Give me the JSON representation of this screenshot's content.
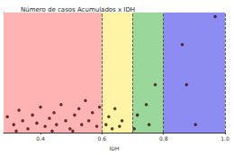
{
  "chart_data": {
    "type": "scatter",
    "title": "Número de casos Acumulados x IDH",
    "x_label": "IDH",
    "xlim": [
      0.28,
      1.0
    ],
    "xticks": [
      0.4,
      0.6,
      0.8,
      {
        "value": 1.0,
        "label": "1.0"
      }
    ],
    "ylim": [
      0,
      100
    ],
    "tick_labels": "x",
    "grid": false,
    "color": "#3a0d0d",
    "marker": "circle",
    "regions": [
      {
        "from": 0.28,
        "to": 0.6,
        "color": "#ffb3b3"
      },
      {
        "from": 0.6,
        "to": 0.7,
        "color": "#fff3a6"
      },
      {
        "from": 0.7,
        "to": 0.8,
        "color": "#9ad79a"
      },
      {
        "from": 0.8,
        "to": 1.0,
        "color": "#8c8cf2"
      }
    ],
    "x": [
      0.292,
      0.313,
      0.33,
      0.342,
      0.359,
      0.374,
      0.388,
      0.4,
      0.415,
      0.429,
      0.444,
      0.452,
      0.467,
      0.482,
      0.496,
      0.511,
      0.525,
      0.534,
      0.546,
      0.557,
      0.569,
      0.583,
      0.592,
      0.321,
      0.438,
      0.505,
      0.613,
      0.622,
      0.633,
      0.642,
      0.657,
      0.665,
      0.705,
      0.715,
      0.744,
      0.753,
      0.773,
      0.861,
      0.875,
      0.904,
      0.968
    ],
    "values": [
      13.3,
      6.7,
      18.7,
      10,
      3.3,
      14.7,
      8,
      21.3,
      5.3,
      12,
      16.7,
      6.7,
      23.3,
      10,
      3.3,
      14.7,
      20,
      6.7,
      26.7,
      10,
      16.7,
      5.3,
      21.3,
      1.3,
      1.3,
      1.3,
      6.7,
      13.3,
      3.3,
      20,
      5.3,
      10,
      3.3,
      14.7,
      23.3,
      6.7,
      40,
      73.3,
      40,
      6.7,
      96.7
    ]
  }
}
